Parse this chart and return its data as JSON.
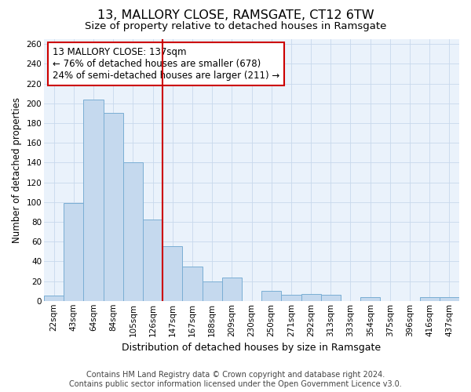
{
  "title": "13, MALLORY CLOSE, RAMSGATE, CT12 6TW",
  "subtitle": "Size of property relative to detached houses in Ramsgate",
  "xlabel": "Distribution of detached houses by size in Ramsgate",
  "ylabel": "Number of detached properties",
  "bar_labels": [
    "22sqm",
    "43sqm",
    "64sqm",
    "84sqm",
    "105sqm",
    "126sqm",
    "147sqm",
    "167sqm",
    "188sqm",
    "209sqm",
    "230sqm",
    "250sqm",
    "271sqm",
    "292sqm",
    "313sqm",
    "333sqm",
    "354sqm",
    "375sqm",
    "396sqm",
    "416sqm",
    "437sqm"
  ],
  "bar_values": [
    5,
    99,
    204,
    190,
    140,
    82,
    55,
    35,
    20,
    24,
    0,
    10,
    6,
    7,
    6,
    0,
    4,
    0,
    0,
    4,
    4
  ],
  "bar_color": "#c5d9ee",
  "bar_edge_color": "#7aaed4",
  "vline_x_index": 6,
  "vline_color": "#cc0000",
  "ylim": [
    0,
    265
  ],
  "yticks": [
    0,
    20,
    40,
    60,
    80,
    100,
    120,
    140,
    160,
    180,
    200,
    220,
    240,
    260
  ],
  "annotation_text": "13 MALLORY CLOSE: 137sqm\n← 76% of detached houses are smaller (678)\n24% of semi-detached houses are larger (211) →",
  "annotation_box_color": "#ffffff",
  "annotation_box_edge": "#cc0000",
  "footer_line1": "Contains HM Land Registry data © Crown copyright and database right 2024.",
  "footer_line2": "Contains public sector information licensed under the Open Government Licence v3.0.",
  "title_fontsize": 11.5,
  "subtitle_fontsize": 9.5,
  "xlabel_fontsize": 9,
  "ylabel_fontsize": 8.5,
  "tick_fontsize": 7.5,
  "annotation_fontsize": 8.5,
  "footer_fontsize": 7
}
